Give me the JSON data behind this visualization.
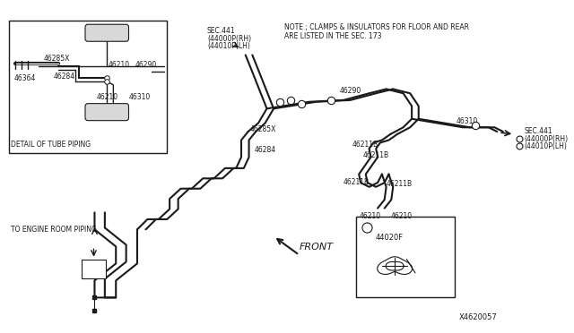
{
  "bg_color": "#ffffff",
  "line_color": "#1a1a1a",
  "fig_width": 6.4,
  "fig_height": 3.72,
  "dpi": 100,
  "note_line1": "NOTE ; CLAMPS & INSULATORS FOR FLOOR AND REAR",
  "note_line2": "ARE LISTED IN THE SEC. 173",
  "diagram_id": "X4620057",
  "detail_label": "DETAIL OF TUBE PIPING",
  "engine_label": "TO ENGINE ROOM PIPING",
  "front_label": "FRONT",
  "sec441_top": "SEC.441\n(44000P(RH)\n(44010P(LH)",
  "sec441_right": "SEC.441\n(44000P(RH)\n(44010P(LH)",
  "label_46285X_detail": "46285X",
  "label_46284_detail": "46284",
  "label_46364_detail": "46364",
  "label_46210a_detail": "46210",
  "label_46290_detail": "46290",
  "label_46210b_detail": "46210",
  "label_46310_detail": "46310",
  "label_46285X_main": "46285X",
  "label_46284_main": "46284",
  "label_46290_main": "46290",
  "label_46211B_1": "46211B",
  "label_46211B_2": "46211B",
  "label_46211B_3": "46211B",
  "label_46211B_4": "46211B",
  "label_46210_1": "46210",
  "label_46210_2": "46210",
  "label_46310_main": "46310",
  "label_44020F": "44020F"
}
